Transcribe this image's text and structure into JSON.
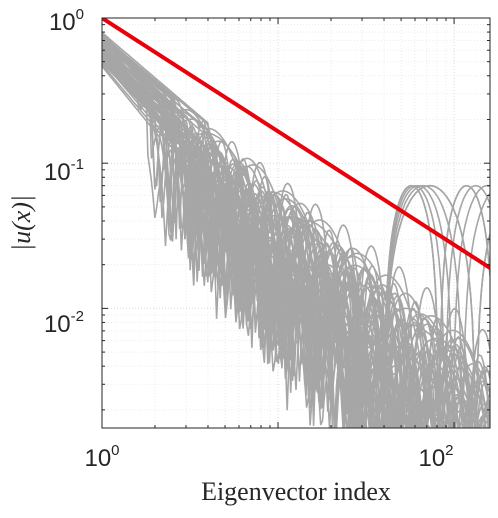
{
  "chart_data": {
    "type": "line",
    "title": "",
    "xlabel": "Eigenvector index",
    "ylabel": "|u(x)|",
    "xscale": "log",
    "yscale": "log",
    "xlim": [
      1,
      160
    ],
    "ylim": [
      0.0015,
      1
    ],
    "grid": true,
    "x_ticks": [
      {
        "base": "10",
        "exp": "0"
      },
      {
        "base": "10",
        "exp": "2"
      }
    ],
    "y_ticks": [
      {
        "base": "10",
        "exp": "0"
      },
      {
        "base": "10",
        "exp": "-1"
      },
      {
        "base": "10",
        "exp": "-2"
      }
    ],
    "reference_line": {
      "color": "#e8000b",
      "x": [
        1,
        160
      ],
      "y": [
        1,
        0.019
      ]
    },
    "eigenvector_curves": {
      "color": "#a6a6a6",
      "description_count": 60
    }
  }
}
